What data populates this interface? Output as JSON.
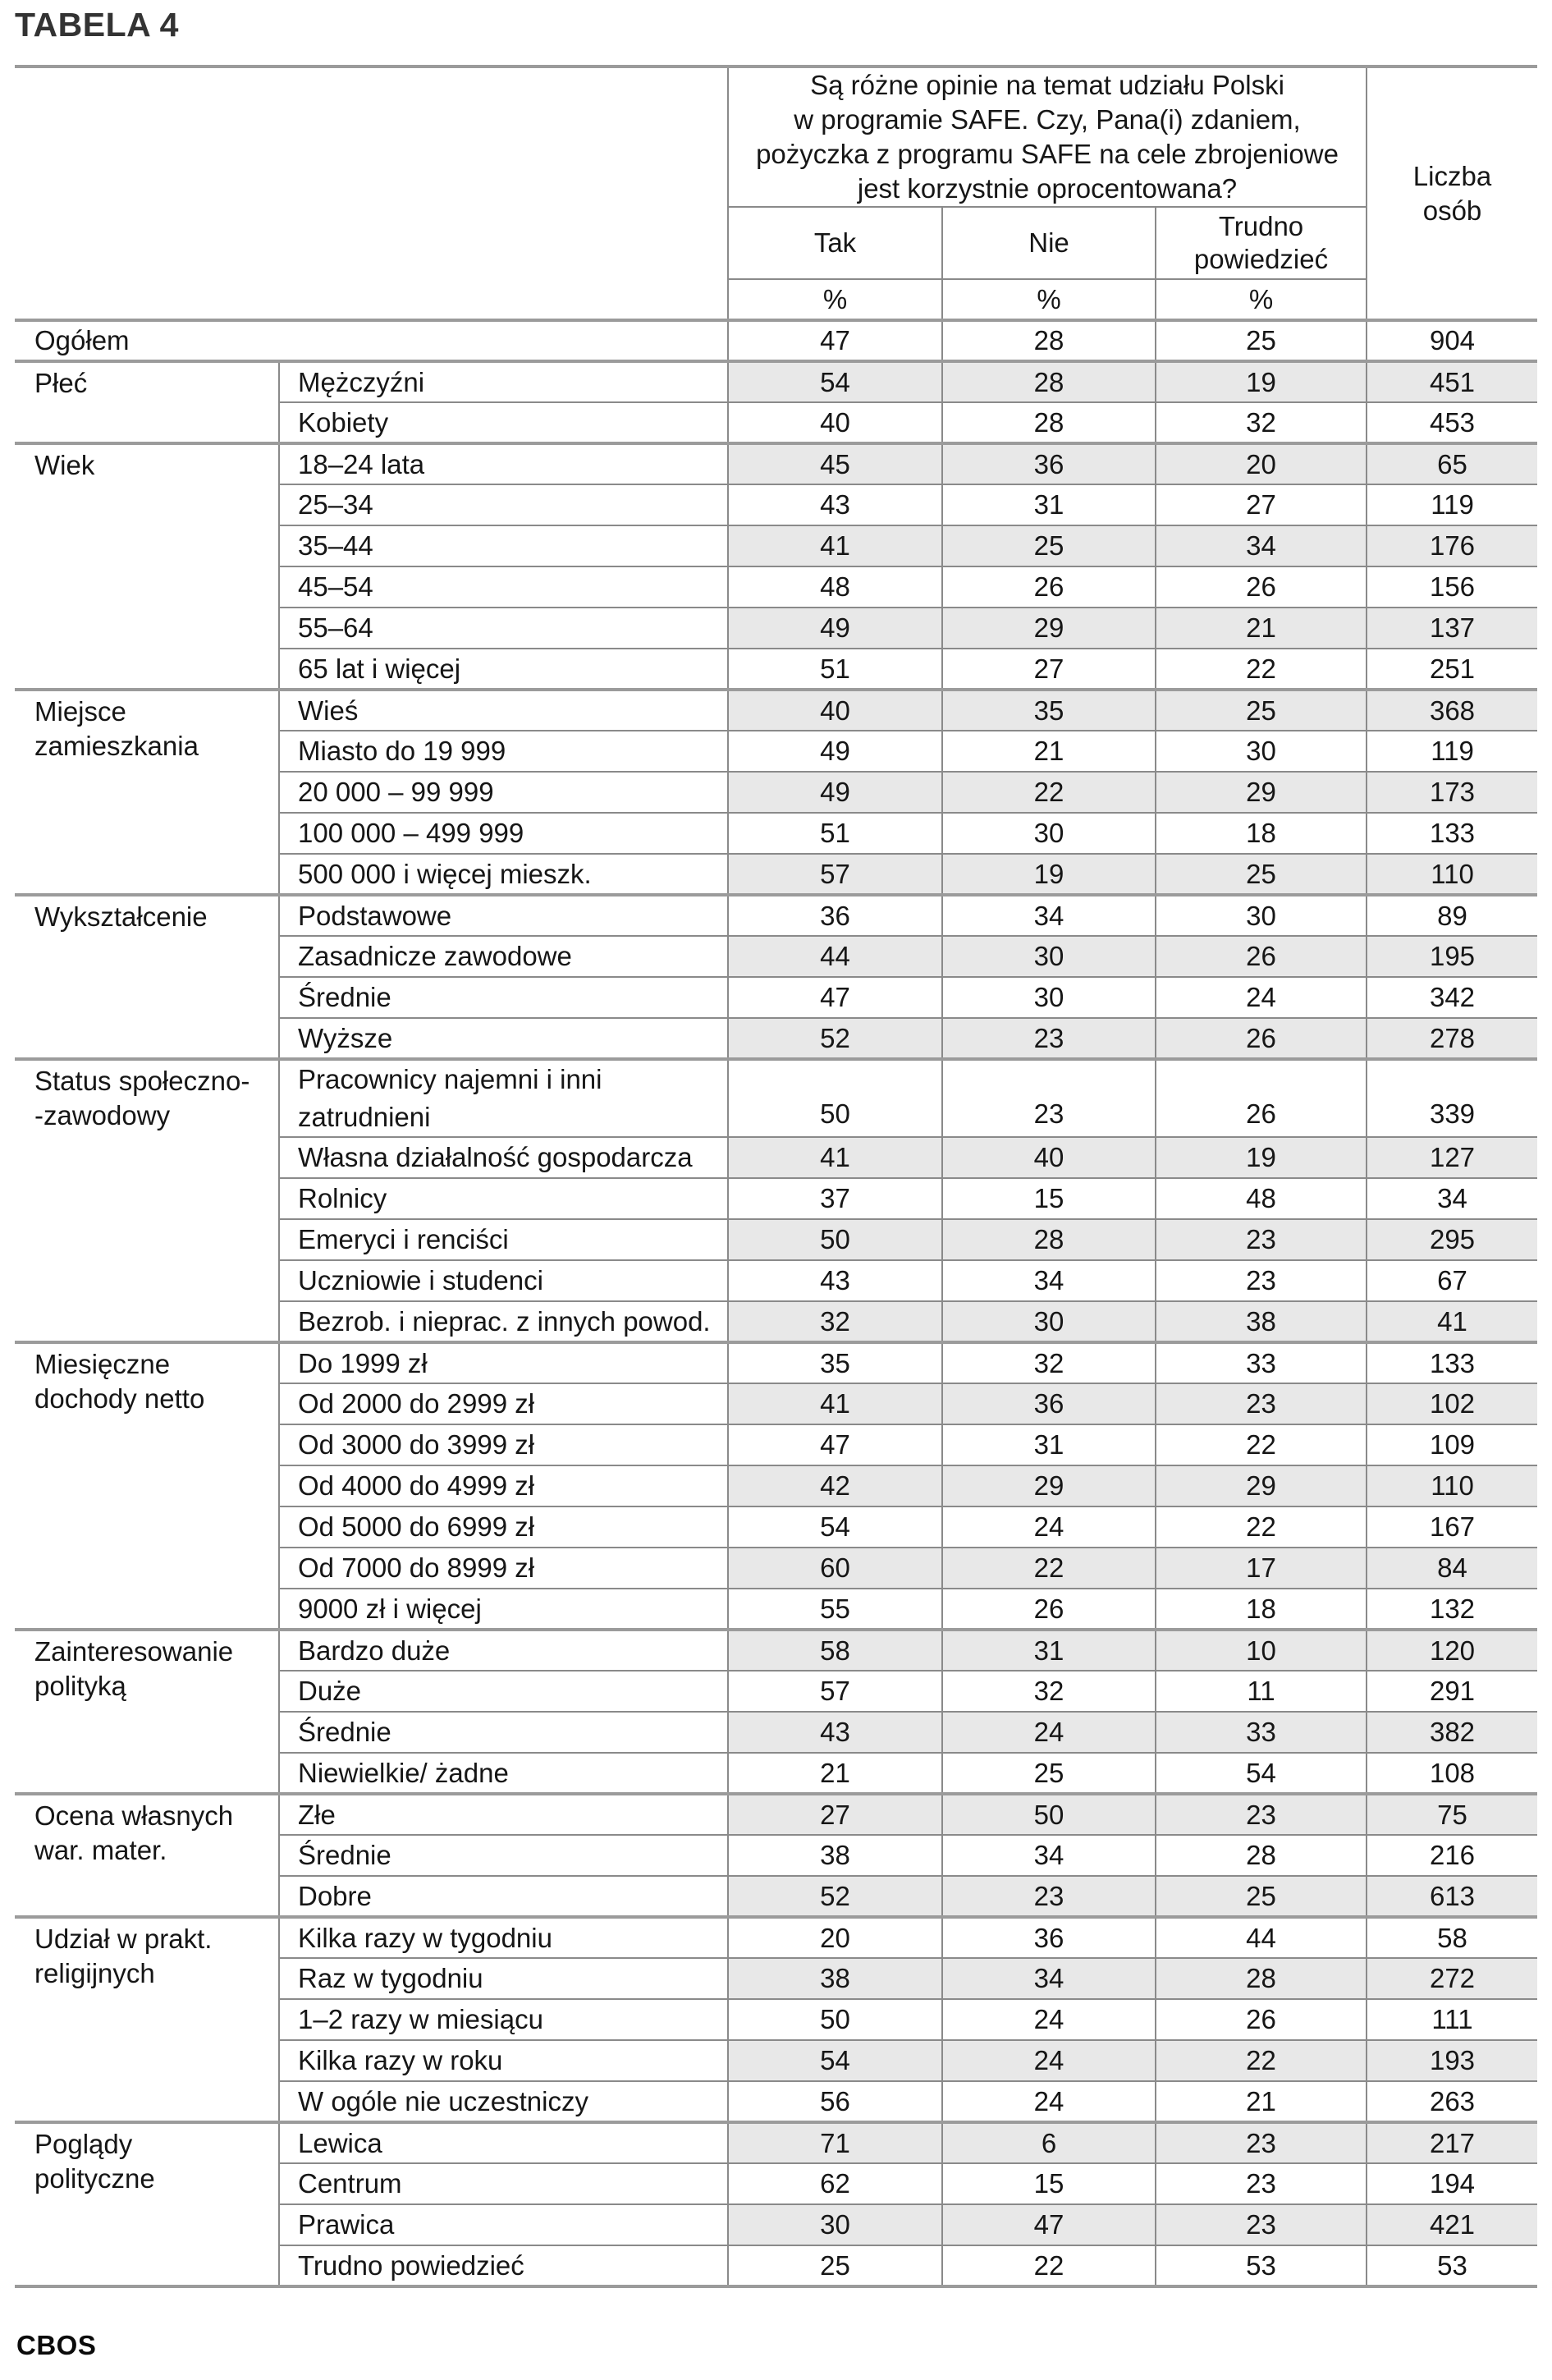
{
  "title": "TABELA 4",
  "footer": "CBOS",
  "colors": {
    "row_shading": "#e8e8e8",
    "border_thin": "#8a8a8a",
    "border_thick": "#9b9b9b",
    "text": "#161616",
    "title": "#333333"
  },
  "header": {
    "question_lines": [
      "Są różne opinie na temat udziału Polski",
      "w programie SAFE. Czy, Pana(i) zdaniem,",
      "pożyczka z programu SAFE na cele zbrojeniowe",
      "jest korzystnie oprocentowana?"
    ],
    "answers": [
      "Tak",
      "Nie",
      "Trudno\npowiedzieć"
    ],
    "percent": [
      "%",
      "%",
      "%"
    ],
    "count_column": "Liczba\nosób"
  },
  "table": {
    "groups": [
      {
        "label": null,
        "rows": [
          {
            "label": "Ogółem",
            "values": [
              47,
              28,
              25,
              904
            ]
          }
        ]
      },
      {
        "label": "Płeć",
        "rows": [
          {
            "label": "Mężczyźni",
            "values": [
              54,
              28,
              19,
              451
            ]
          },
          {
            "label": "Kobiety",
            "values": [
              40,
              28,
              32,
              453
            ]
          }
        ]
      },
      {
        "label": "Wiek",
        "rows": [
          {
            "label": "18–24 lata",
            "values": [
              45,
              36,
              20,
              65
            ]
          },
          {
            "label": "25–34",
            "values": [
              43,
              31,
              27,
              119
            ]
          },
          {
            "label": "35–44",
            "values": [
              41,
              25,
              34,
              176
            ]
          },
          {
            "label": "45–54",
            "values": [
              48,
              26,
              26,
              156
            ]
          },
          {
            "label": "55–64",
            "values": [
              49,
              29,
              21,
              137
            ]
          },
          {
            "label": "65 lat i więcej",
            "values": [
              51,
              27,
              22,
              251
            ]
          }
        ]
      },
      {
        "label": "Miejsce\nzamieszkania",
        "rows": [
          {
            "label": "Wieś",
            "values": [
              40,
              35,
              25,
              368
            ]
          },
          {
            "label": "Miasto do 19 999",
            "values": [
              49,
              21,
              30,
              119
            ]
          },
          {
            "label": "20 000 – 99 999",
            "values": [
              49,
              22,
              29,
              173
            ]
          },
          {
            "label": "100 000 – 499 999",
            "values": [
              51,
              30,
              18,
              133
            ]
          },
          {
            "label": "500 000 i więcej mieszk.",
            "values": [
              57,
              19,
              25,
              110
            ]
          }
        ]
      },
      {
        "label": "Wykształcenie",
        "rows": [
          {
            "label": "Podstawowe",
            "values": [
              36,
              34,
              30,
              89
            ]
          },
          {
            "label": "Zasadnicze zawodowe",
            "values": [
              44,
              30,
              26,
              195
            ]
          },
          {
            "label": "Średnie",
            "values": [
              47,
              30,
              24,
              342
            ]
          },
          {
            "label": "Wyższe",
            "values": [
              52,
              23,
              26,
              278
            ]
          }
        ]
      },
      {
        "label": "Status społeczno-\n-zawodowy",
        "rows": [
          {
            "label": "Pracownicy najemni i inni\nzatrudnieni",
            "tall": true,
            "values": [
              50,
              23,
              26,
              339
            ]
          },
          {
            "label": "Własna działalność gospodarcza",
            "values": [
              41,
              40,
              19,
              127
            ]
          },
          {
            "label": "Rolnicy",
            "values": [
              37,
              15,
              48,
              34
            ]
          },
          {
            "label": "Emeryci i renciści",
            "values": [
              50,
              28,
              23,
              295
            ]
          },
          {
            "label": "Uczniowie i studenci",
            "values": [
              43,
              34,
              23,
              67
            ]
          },
          {
            "label": "Bezrob. i nieprac. z innych powod.",
            "values": [
              32,
              30,
              38,
              41
            ]
          }
        ]
      },
      {
        "label": "Miesięczne\ndochody netto",
        "rows": [
          {
            "label": "Do 1999 zł",
            "values": [
              35,
              32,
              33,
              133
            ]
          },
          {
            "label": "Od 2000 do 2999 zł",
            "values": [
              41,
              36,
              23,
              102
            ]
          },
          {
            "label": "Od 3000 do 3999 zł",
            "values": [
              47,
              31,
              22,
              109
            ]
          },
          {
            "label": "Od 4000 do 4999 zł",
            "values": [
              42,
              29,
              29,
              110
            ]
          },
          {
            "label": "Od 5000 do 6999 zł",
            "values": [
              54,
              24,
              22,
              167
            ]
          },
          {
            "label": "Od 7000 do 8999 zł",
            "values": [
              60,
              22,
              17,
              84
            ]
          },
          {
            "label": "9000 zł i więcej",
            "values": [
              55,
              26,
              18,
              132
            ]
          }
        ]
      },
      {
        "label": "Zainteresowanie\npolityką",
        "rows": [
          {
            "label": "Bardzo duże",
            "values": [
              58,
              31,
              10,
              120
            ]
          },
          {
            "label": "Duże",
            "values": [
              57,
              32,
              11,
              291
            ]
          },
          {
            "label": "Średnie",
            "values": [
              43,
              24,
              33,
              382
            ]
          },
          {
            "label": "Niewielkie/ żadne",
            "values": [
              21,
              25,
              54,
              108
            ]
          }
        ]
      },
      {
        "label": "Ocena własnych\nwar. mater.",
        "rows": [
          {
            "label": "Złe",
            "values": [
              27,
              50,
              23,
              75
            ]
          },
          {
            "label": "Średnie",
            "values": [
              38,
              34,
              28,
              216
            ]
          },
          {
            "label": "Dobre",
            "values": [
              52,
              23,
              25,
              613
            ]
          }
        ]
      },
      {
        "label": "Udział w prakt.\nreligijnych",
        "rows": [
          {
            "label": "Kilka razy w tygodniu",
            "values": [
              20,
              36,
              44,
              58
            ]
          },
          {
            "label": "Raz w tygodniu",
            "values": [
              38,
              34,
              28,
              272
            ]
          },
          {
            "label": "1–2 razy w miesiącu",
            "values": [
              50,
              24,
              26,
              111
            ]
          },
          {
            "label": "Kilka razy w roku",
            "values": [
              54,
              24,
              22,
              193
            ]
          },
          {
            "label": "W ogóle nie uczestniczy",
            "values": [
              56,
              24,
              21,
              263
            ]
          }
        ]
      },
      {
        "label": "Poglądy\npolityczne",
        "rows": [
          {
            "label": "Lewica",
            "values": [
              71,
              6,
              23,
              217
            ]
          },
          {
            "label": "Centrum",
            "values": [
              62,
              15,
              23,
              194
            ]
          },
          {
            "label": "Prawica",
            "values": [
              30,
              47,
              23,
              421
            ]
          },
          {
            "label": "Trudno powiedzieć",
            "values": [
              25,
              22,
              53,
              53
            ]
          }
        ]
      }
    ]
  }
}
